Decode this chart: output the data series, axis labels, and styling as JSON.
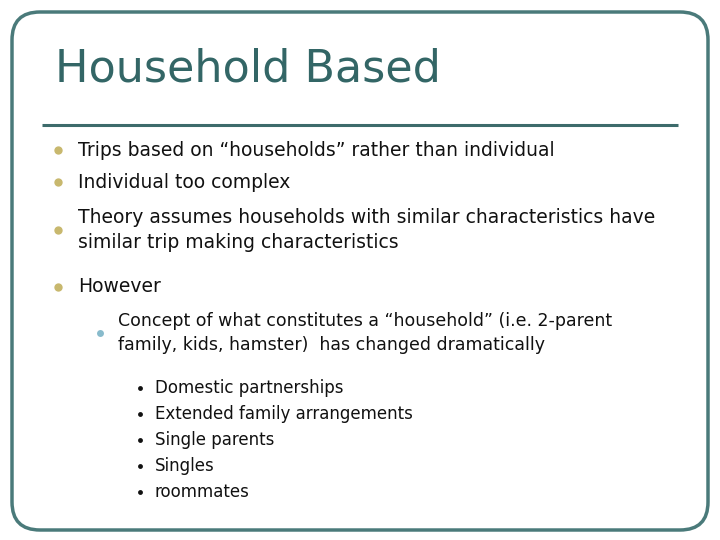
{
  "title": "Household Based",
  "title_color": "#336666",
  "title_fontsize": 32,
  "body_fontsize": 13.5,
  "sub_fontsize": 12.5,
  "subsub_fontsize": 12,
  "background_color": "#ffffff",
  "border_color": "#4a7a7a",
  "line_color": "#3d6b6b",
  "bullet_color": "#c8b86e",
  "sub_bullet_color": "#88bbcc",
  "text_color": "#111111",
  "bullet1": "Trips based on “households” rather than individual",
  "bullet2": "Individual too complex",
  "bullet3": "Theory assumes households with similar characteristics have\nsimilar trip making characteristics",
  "bullet4": "However",
  "sub_bullet": "Concept of what constitutes a “household” (i.e. 2-parent\nfamily, kids, hamster)  has changed dramatically",
  "subsub_bullets": [
    "Domestic partnerships",
    "Extended family arrangements",
    "Single parents",
    "Singles",
    "roommates"
  ]
}
